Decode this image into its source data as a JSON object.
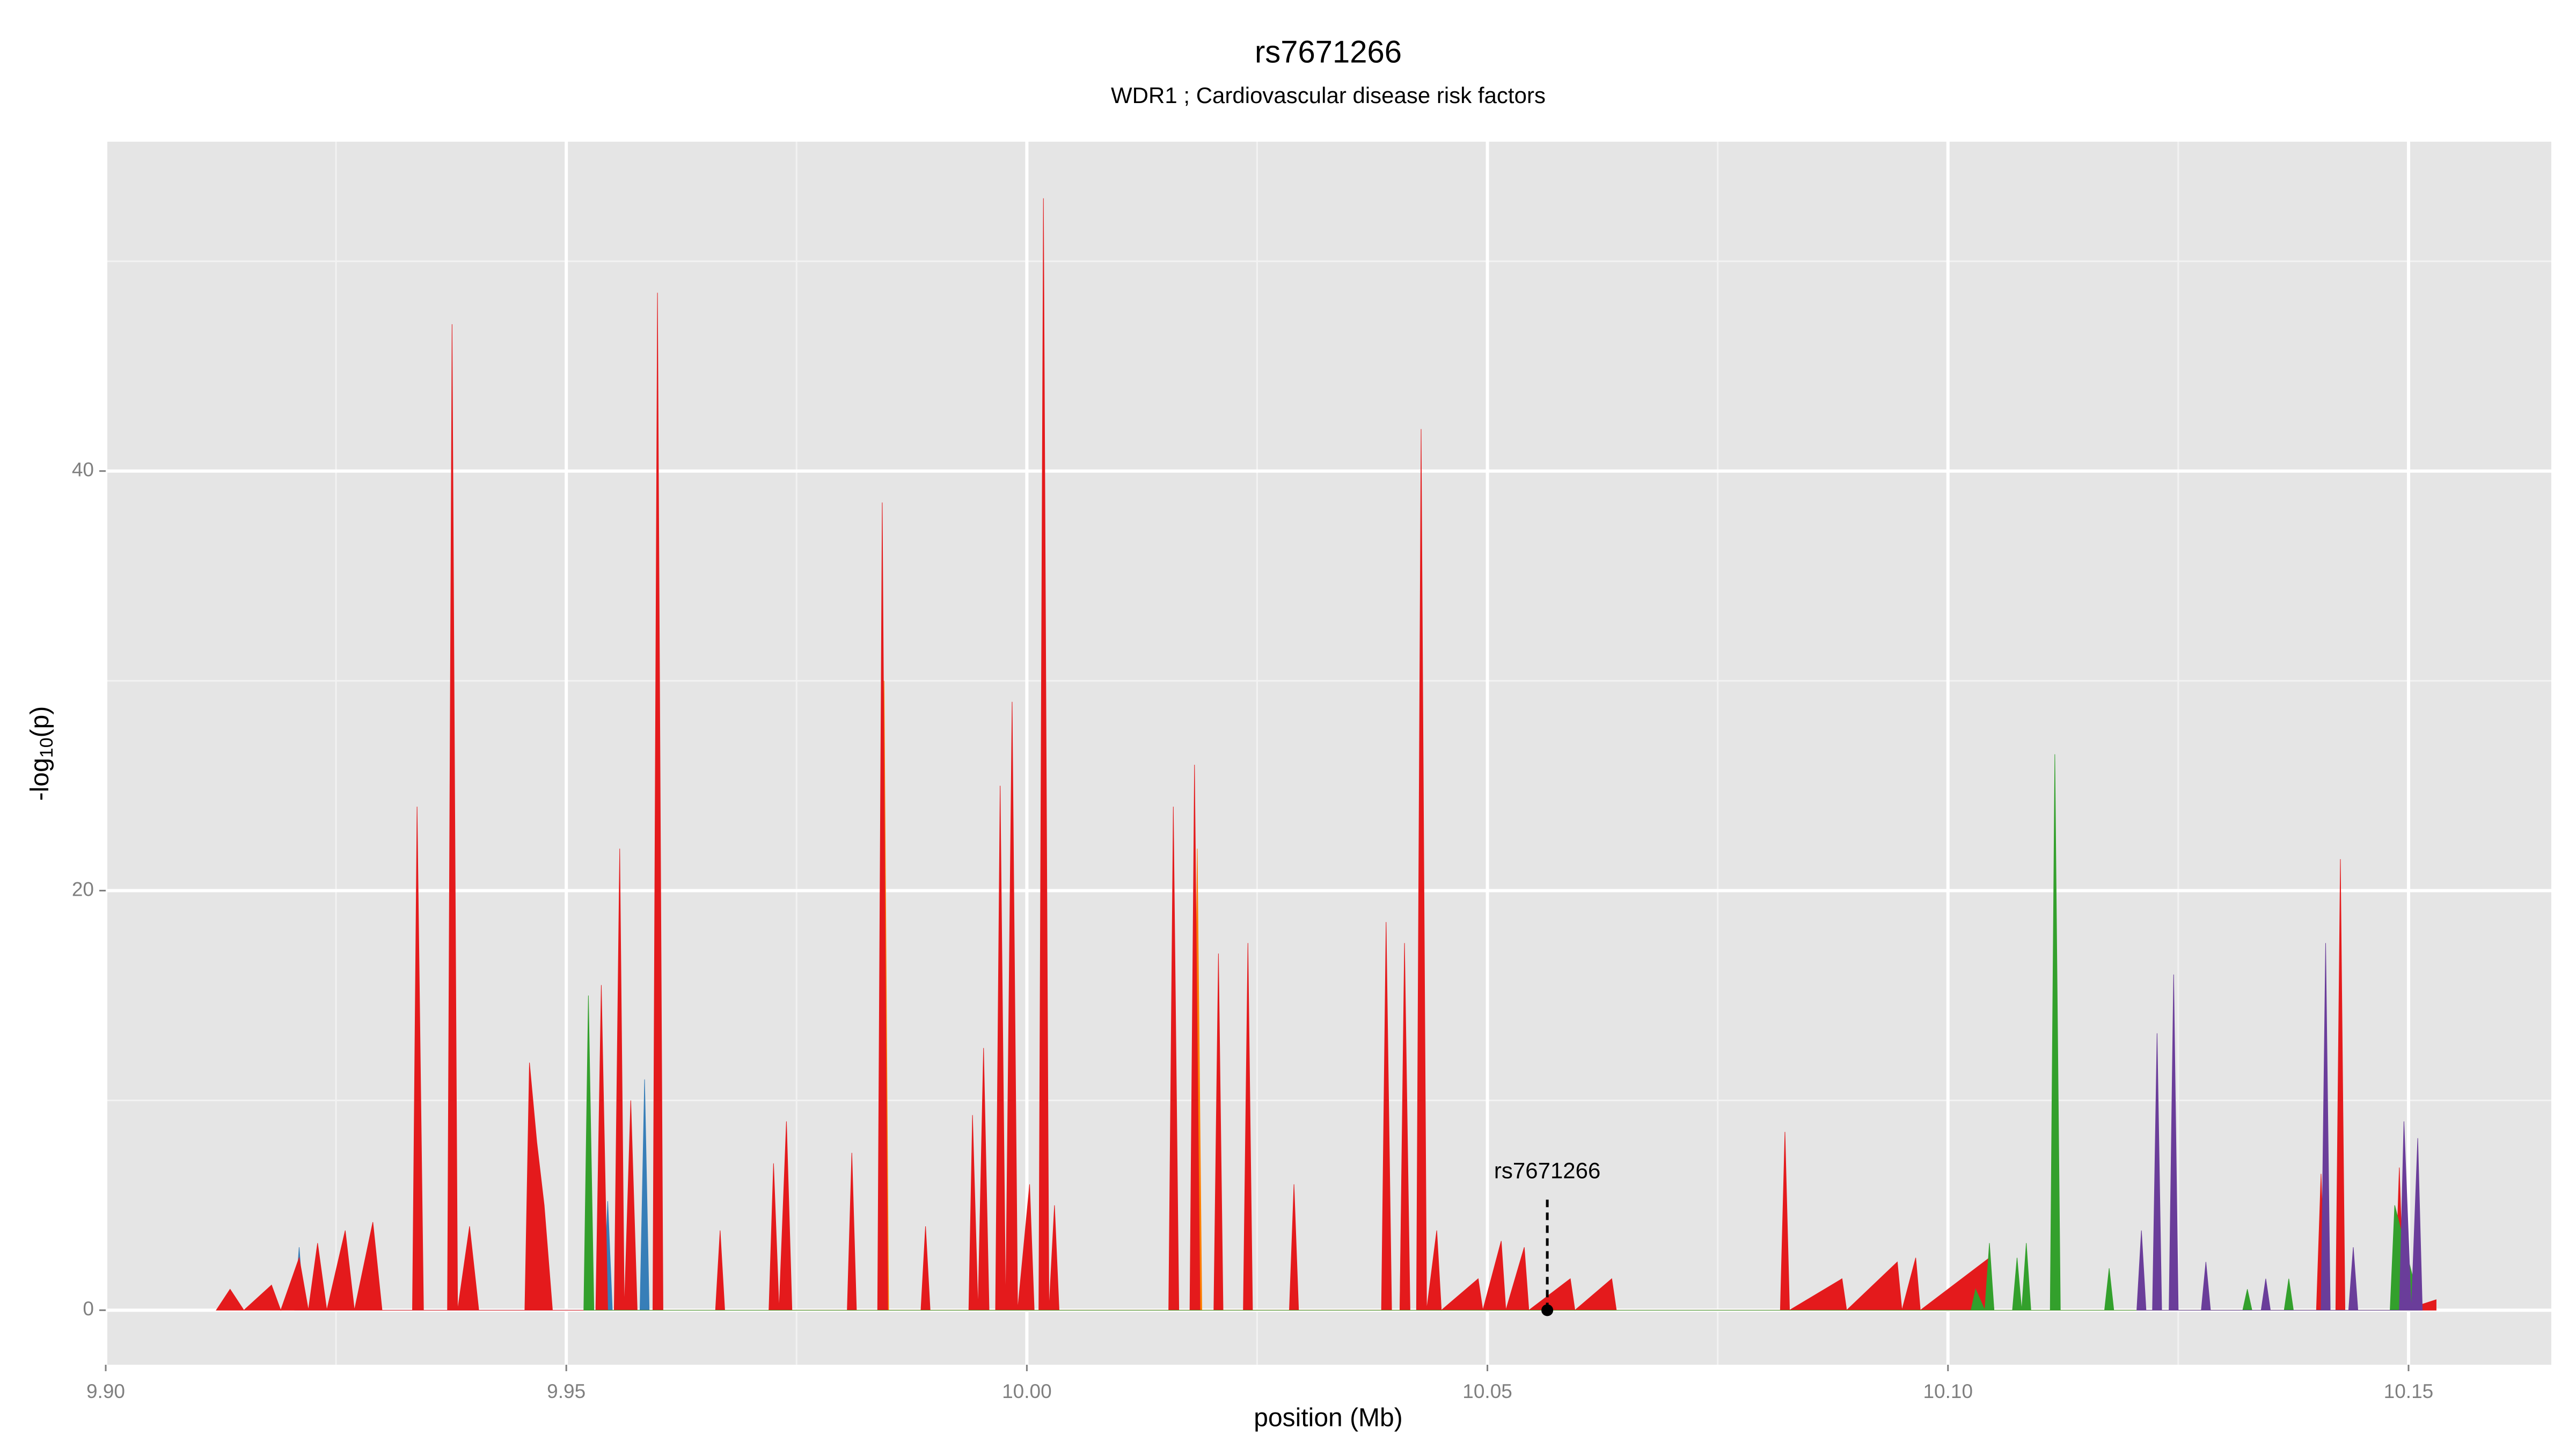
{
  "chart_data": {
    "type": "area",
    "title": "rs7671266",
    "subtitle": "WDR1 ; Cardiovascular disease risk factors",
    "x_label": "position (Mb)",
    "y_label": [
      "-log",
      "10",
      "(p)"
    ],
    "xlim": [
      9.9,
      10.1655
    ],
    "ylim": [
      -2.6,
      55.7
    ],
    "xticks": [
      {
        "value": 9.9,
        "label": "9.90"
      },
      9.95,
      {
        "value": 10,
        "label": "10.00"
      },
      10.05,
      {
        "value": 10.1,
        "label": "10.10"
      },
      10.15
    ],
    "yticks": [
      0,
      20,
      40
    ],
    "grid": true,
    "background": "#e5e5e5",
    "annotation": {
      "text": "rs7671266",
      "x": 10.0565,
      "y": 0
    },
    "series": [
      {
        "color": "#ff7f00",
        "x": [
          9.972,
          9.9725,
          9.973,
          9.984,
          9.9845,
          9.985,
          10.018,
          10.0185,
          10.019,
          10.0405,
          10.041,
          10.0415
        ],
        "values": [
          0,
          3.5,
          0,
          0,
          30,
          0,
          0,
          22,
          0,
          0,
          16,
          0
        ]
      },
      {
        "color": "#377eb8",
        "x": [
          9.9205,
          9.921,
          9.9215,
          9.954,
          9.9545,
          9.955,
          9.958,
          9.9585,
          9.959
        ],
        "values": [
          0,
          3,
          0,
          0,
          5.2,
          0,
          0,
          11,
          0
        ]
      },
      {
        "color": "#e41a1c",
        "x": [
          9.912,
          9.9135,
          9.915,
          9.918,
          9.919,
          9.921,
          9.922,
          9.923,
          9.924,
          9.926,
          9.927,
          9.929,
          9.93,
          9.9333,
          9.9338,
          9.9345,
          9.9371,
          9.9376,
          9.9382,
          9.9395,
          9.9405,
          9.9455,
          9.946,
          9.9468,
          9.9476,
          9.9485,
          9.9532,
          9.9538,
          9.9545,
          9.9552,
          9.9558,
          9.9563,
          9.957,
          9.9577,
          9.9594,
          9.9599,
          9.9605,
          9.9662,
          9.9667,
          9.9672,
          9.972,
          9.9725,
          9.9731,
          9.9739,
          9.9745,
          9.9805,
          9.981,
          9.9815,
          9.9838,
          9.9843,
          9.9849,
          9.9885,
          9.989,
          9.9895,
          9.9937,
          9.9941,
          9.9947,
          9.9953,
          9.9959,
          9.9966,
          9.9971,
          9.9977,
          9.9984,
          9.999,
          10.0003,
          10.0008,
          10.0013,
          10.0018,
          10.0024,
          10.003,
          10.0035,
          10.0154,
          10.0159,
          10.0165,
          10.0177,
          10.0182,
          10.0188,
          10.0203,
          10.0208,
          10.0213,
          10.0235,
          10.024,
          10.0245,
          10.0285,
          10.029,
          10.0295,
          10.0385,
          10.039,
          10.0396,
          10.0405,
          10.041,
          10.0416,
          10.0423,
          10.0428,
          10.0434,
          10.0445,
          10.045,
          10.049,
          10.0495,
          10.0515,
          10.052,
          10.054,
          10.0545,
          10.059,
          10.0595,
          10.0635,
          10.064,
          10.0818,
          10.0823,
          10.0828,
          10.0885,
          10.089,
          10.0945,
          10.095,
          10.0965,
          10.097,
          10.1045,
          10.105,
          10.14,
          10.1405,
          10.141,
          10.1421,
          10.1426,
          10.1431,
          10.1485,
          10.149,
          10.1495,
          10.153
        ],
        "values": [
          0,
          1,
          0,
          1.2,
          0,
          2.5,
          0,
          3.2,
          0,
          3.8,
          0,
          4.2,
          0,
          0,
          24,
          0,
          0,
          47,
          0,
          4,
          0,
          0,
          11.8,
          8,
          5,
          0,
          0,
          15.5,
          0,
          0,
          22,
          0,
          10,
          0,
          0,
          48.5,
          0,
          0,
          3.8,
          0,
          0,
          7,
          0,
          9,
          0,
          0,
          7.5,
          0,
          0,
          38.5,
          0,
          0,
          4,
          0,
          0,
          9.3,
          0,
          12.5,
          0,
          0,
          25,
          0,
          29,
          0,
          6,
          0,
          0,
          53,
          0,
          5,
          0,
          0,
          24,
          0,
          0,
          26,
          0,
          0,
          17,
          0,
          0,
          17.5,
          0,
          0,
          6,
          0,
          0,
          18.5,
          0,
          0,
          17.5,
          0,
          0,
          42,
          0,
          3.8,
          0,
          1.5,
          0,
          3.3,
          0,
          3,
          0,
          1.5,
          0,
          1.5,
          0,
          0,
          8.5,
          0,
          1.5,
          0,
          2.3,
          0,
          2.5,
          0,
          2.5,
          0,
          0,
          6.5,
          0,
          0,
          21.5,
          0,
          0,
          6.8,
          0,
          0.5
        ]
      },
      {
        "color": "#33a02c",
        "x": [
          9.9519,
          9.9524,
          9.953,
          10.1025,
          10.103,
          10.104,
          10.1045,
          10.105,
          10.107,
          10.1075,
          10.108,
          10.1085,
          10.109,
          10.1111,
          10.1116,
          10.1122,
          10.117,
          10.1175,
          10.118,
          10.132,
          10.1325,
          10.133,
          10.1365,
          10.137,
          10.1375,
          10.148,
          10.1485,
          10.1505,
          10.151
        ],
        "values": [
          0,
          15,
          0,
          0,
          1,
          0,
          3.2,
          0,
          0,
          2.5,
          0,
          3.2,
          0,
          0,
          26.5,
          0,
          0,
          2,
          0,
          0,
          1,
          0,
          0,
          1.5,
          0,
          0,
          5,
          1.5,
          0
        ]
      },
      {
        "color": "#6a3d9a",
        "x": [
          10.1205,
          10.121,
          10.1215,
          10.1222,
          10.1227,
          10.1232,
          10.124,
          10.1245,
          10.125,
          10.1275,
          10.128,
          10.1285,
          10.134,
          10.1345,
          10.135,
          10.1405,
          10.141,
          10.1415,
          10.1435,
          10.144,
          10.1445,
          10.149,
          10.1495,
          10.1503,
          10.151,
          10.1515
        ],
        "values": [
          0,
          3.8,
          0,
          0,
          13.2,
          0,
          0,
          16,
          0,
          0,
          2.3,
          0,
          0,
          1.5,
          0,
          0,
          17.5,
          0,
          0,
          3,
          0,
          0,
          9,
          0,
          8.2,
          0
        ]
      }
    ]
  }
}
